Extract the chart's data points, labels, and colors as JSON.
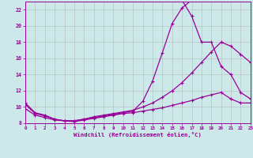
{
  "bg_color": "#cce8e8",
  "line_color": "#990099",
  "grid_color": "#b0b0b0",
  "xlabel": "Windchill (Refroidissement éolien,°C)",
  "xlim": [
    0,
    23
  ],
  "ylim": [
    8,
    23
  ],
  "yticks": [
    8,
    10,
    12,
    14,
    16,
    18,
    20,
    22
  ],
  "xticks": [
    0,
    1,
    2,
    3,
    4,
    5,
    6,
    7,
    8,
    9,
    10,
    11,
    12,
    13,
    14,
    15,
    16,
    17,
    18,
    19,
    20,
    21,
    22,
    23
  ],
  "line1_x": [
    0,
    1,
    2,
    3,
    4,
    5,
    6,
    7,
    8,
    9,
    10,
    11,
    12,
    13,
    14,
    15,
    16,
    17
  ],
  "line1_y": [
    10.5,
    9.3,
    9.0,
    8.5,
    8.3,
    8.3,
    8.5,
    8.7,
    8.9,
    9.1,
    9.3,
    9.5,
    10.7,
    13.2,
    16.7,
    20.3,
    22.2,
    23.2
  ],
  "line2_x": [
    16,
    17,
    18,
    19,
    20,
    21,
    22,
    23
  ],
  "line2_y": [
    23.2,
    21.2,
    18.0,
    18.0,
    15.0,
    14.0,
    11.8,
    11.0
  ],
  "line3_x": [
    0,
    1,
    2,
    3,
    4,
    5,
    6,
    7,
    8,
    9,
    10,
    11,
    12,
    13,
    14,
    15,
    16,
    17,
    18,
    19,
    20,
    21,
    22,
    23
  ],
  "line3_y": [
    10.3,
    9.2,
    8.9,
    8.5,
    8.3,
    8.3,
    8.5,
    8.8,
    9.0,
    9.2,
    9.4,
    9.6,
    10.0,
    10.5,
    11.2,
    12.0,
    13.0,
    14.2,
    15.5,
    16.8,
    18.0,
    17.5,
    16.5,
    15.5
  ],
  "line4_x": [
    0,
    1,
    2,
    3,
    4,
    5,
    6,
    7,
    8,
    9,
    10,
    11,
    12,
    13,
    14,
    15,
    16,
    17,
    18,
    19,
    20,
    21,
    22,
    23
  ],
  "line4_y": [
    9.8,
    9.0,
    8.7,
    8.4,
    8.3,
    8.2,
    8.4,
    8.6,
    8.8,
    9.0,
    9.2,
    9.3,
    9.5,
    9.7,
    9.9,
    10.2,
    10.5,
    10.8,
    11.2,
    11.5,
    11.8,
    11.0,
    10.5,
    10.5
  ]
}
